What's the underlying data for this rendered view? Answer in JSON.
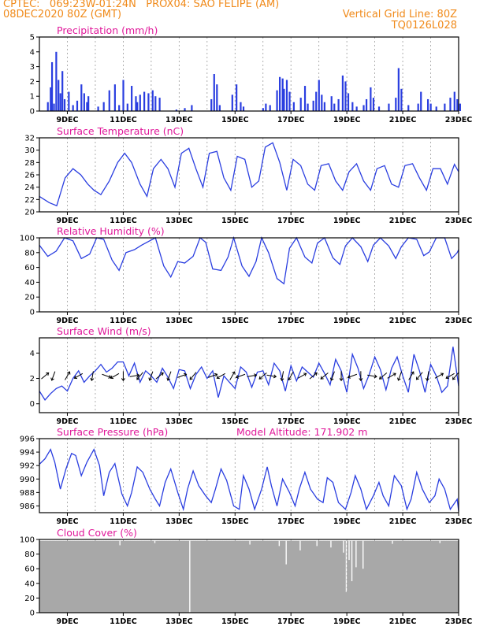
{
  "header": {
    "line1_left": "CPTEC:   069:23W-01:24N   PROX04: SAO FELIPE (AM)",
    "line2_left": "08DEC2020 80Z (GMT)",
    "line2_right": "Vertical Grid Line: 80Z",
    "line3_right": "TQ0126L028"
  },
  "colors": {
    "header": "#f08a1a",
    "title": "#e0189a",
    "line": "#2a3ee0",
    "bar": "#2a3ee0",
    "cloud": "#a8a8a8",
    "axis": "#000000"
  },
  "x_axis": {
    "tick_labels": [
      "9DEC",
      "11DEC",
      "13DEC",
      "15DEC",
      "17DEC",
      "19DEC",
      "21DEC",
      "23DEC"
    ],
    "start": "08DEC2020 80Z",
    "end": "23DEC2020 80Z"
  },
  "chart_data": [
    {
      "type": "bar",
      "title": "Precipitation (mm/h)",
      "ylabel": "mm/h",
      "ylim": [
        0,
        5
      ],
      "yticks": [
        0,
        1,
        2,
        3,
        4,
        5
      ],
      "bars": [
        [
          8.3,
          0.6
        ],
        [
          8.4,
          1.6
        ],
        [
          8.45,
          3.3
        ],
        [
          8.52,
          0.5
        ],
        [
          8.6,
          4.0
        ],
        [
          8.68,
          2.1
        ],
        [
          8.75,
          1.2
        ],
        [
          8.82,
          2.7
        ],
        [
          8.9,
          0.8
        ],
        [
          9.05,
          1.3
        ],
        [
          9.2,
          0.4
        ],
        [
          9.35,
          0.7
        ],
        [
          9.5,
          1.8
        ],
        [
          9.6,
          1.2
        ],
        [
          9.7,
          0.6
        ],
        [
          9.75,
          1.0
        ],
        [
          10.1,
          0.3
        ],
        [
          10.3,
          0.6
        ],
        [
          10.5,
          1.4
        ],
        [
          10.7,
          1.8
        ],
        [
          10.85,
          0.4
        ],
        [
          11.0,
          2.1
        ],
        [
          11.15,
          0.5
        ],
        [
          11.3,
          1.7
        ],
        [
          11.45,
          1.0
        ],
        [
          11.5,
          0.6
        ],
        [
          11.6,
          1.1
        ],
        [
          11.75,
          1.3
        ],
        [
          11.9,
          1.2
        ],
        [
          12.05,
          1.4
        ],
        [
          12.15,
          1.0
        ],
        [
          12.3,
          0.9
        ],
        [
          12.9,
          0.1
        ],
        [
          13.2,
          0.2
        ],
        [
          13.45,
          0.4
        ],
        [
          14.15,
          0.8
        ],
        [
          14.25,
          2.5
        ],
        [
          14.35,
          1.8
        ],
        [
          14.45,
          0.4
        ],
        [
          14.9,
          1.1
        ],
        [
          15.05,
          1.8
        ],
        [
          15.2,
          0.6
        ],
        [
          15.3,
          0.3
        ],
        [
          16.0,
          0.2
        ],
        [
          16.1,
          0.5
        ],
        [
          16.25,
          0.4
        ],
        [
          16.5,
          1.4
        ],
        [
          16.6,
          2.3
        ],
        [
          16.7,
          2.2
        ],
        [
          16.75,
          1.5
        ],
        [
          16.85,
          2.1
        ],
        [
          16.95,
          1.3
        ],
        [
          17.1,
          0.6
        ],
        [
          17.35,
          0.9
        ],
        [
          17.5,
          1.7
        ],
        [
          17.6,
          0.5
        ],
        [
          17.8,
          0.7
        ],
        [
          17.9,
          1.3
        ],
        [
          18.0,
          2.1
        ],
        [
          18.1,
          1.1
        ],
        [
          18.2,
          0.6
        ],
        [
          18.45,
          1.0
        ],
        [
          18.55,
          0.5
        ],
        [
          18.7,
          0.8
        ],
        [
          18.85,
          2.4
        ],
        [
          18.95,
          2.0
        ],
        [
          19.05,
          1.2
        ],
        [
          19.2,
          0.6
        ],
        [
          19.35,
          0.3
        ],
        [
          19.6,
          0.4
        ],
        [
          19.7,
          0.8
        ],
        [
          19.85,
          1.6
        ],
        [
          19.95,
          0.9
        ],
        [
          20.15,
          0.3
        ],
        [
          20.5,
          0.5
        ],
        [
          20.75,
          0.9
        ],
        [
          20.85,
          2.9
        ],
        [
          20.95,
          1.5
        ],
        [
          21.2,
          0.4
        ],
        [
          21.55,
          0.5
        ],
        [
          21.65,
          1.3
        ],
        [
          21.9,
          0.8
        ],
        [
          22.0,
          0.5
        ],
        [
          22.2,
          0.3
        ],
        [
          22.5,
          0.5
        ],
        [
          22.7,
          0.9
        ],
        [
          22.85,
          1.3
        ],
        [
          22.95,
          0.8
        ],
        [
          23.05,
          0.5
        ]
      ]
    },
    {
      "type": "line",
      "title": "Surface Temperature (nC)",
      "ylabel": "nC",
      "ylim": [
        20,
        32
      ],
      "yticks": [
        20,
        22,
        24,
        26,
        28,
        30,
        32
      ],
      "x": [
        8.0,
        8.35,
        8.62,
        8.92,
        9.2,
        9.48,
        9.73,
        9.95,
        10.2,
        10.5,
        10.8,
        11.05,
        11.3,
        11.6,
        11.85,
        12.08,
        12.35,
        12.6,
        12.85,
        13.08,
        13.35,
        13.6,
        13.85,
        14.08,
        14.35,
        14.6,
        14.85,
        15.08,
        15.35,
        15.6,
        15.85,
        16.08,
        16.35,
        16.6,
        16.85,
        17.08,
        17.35,
        17.6,
        17.85,
        18.08,
        18.35,
        18.6,
        18.85,
        19.08,
        19.35,
        19.6,
        19.85,
        20.08,
        20.35,
        20.6,
        20.85,
        21.08,
        21.35,
        21.6,
        21.85,
        22.08,
        22.35,
        22.6,
        22.85,
        23.0
      ],
      "y": [
        22.5,
        21.5,
        21.0,
        25.5,
        27.0,
        26.0,
        24.5,
        23.5,
        22.8,
        25.0,
        28.0,
        29.5,
        28.0,
        24.5,
        22.5,
        27.0,
        28.5,
        27.0,
        24.0,
        29.5,
        30.3,
        27.0,
        24.0,
        29.5,
        29.8,
        25.5,
        23.5,
        29.0,
        28.5,
        24.0,
        25.0,
        30.5,
        31.2,
        28.0,
        23.5,
        28.5,
        27.5,
        24.5,
        23.5,
        27.5,
        27.8,
        25.0,
        23.5,
        26.5,
        27.8,
        25.0,
        23.5,
        27.0,
        27.5,
        24.5,
        24.0,
        27.5,
        27.8,
        25.5,
        23.5,
        27.0,
        27.0,
        24.5,
        27.7,
        26.5
      ]
    },
    {
      "type": "line",
      "title": "Relative Humidity (%)",
      "ylabel": "%",
      "ylim": [
        0,
        100
      ],
      "yticks": [
        0,
        20,
        40,
        60,
        80,
        100
      ],
      "x": [
        8.0,
        8.3,
        8.6,
        8.9,
        9.2,
        9.5,
        9.8,
        10.05,
        10.3,
        10.6,
        10.85,
        11.1,
        11.4,
        11.65,
        11.9,
        12.15,
        12.45,
        12.7,
        12.95,
        13.2,
        13.5,
        13.75,
        13.95,
        14.2,
        14.5,
        14.75,
        14.95,
        15.25,
        15.5,
        15.75,
        15.95,
        16.2,
        16.5,
        16.75,
        16.95,
        17.2,
        17.5,
        17.75,
        17.95,
        18.2,
        18.5,
        18.75,
        18.95,
        19.2,
        19.5,
        19.75,
        19.95,
        20.2,
        20.5,
        20.75,
        20.95,
        21.2,
        21.5,
        21.75,
        21.95,
        22.2,
        22.5,
        22.75,
        22.95,
        23.0
      ],
      "y": [
        90,
        75,
        82,
        100,
        96,
        72,
        78,
        100,
        98,
        70,
        56,
        80,
        84,
        90,
        95,
        100,
        62,
        47,
        68,
        66,
        75,
        100,
        94,
        58,
        56,
        74,
        100,
        62,
        48,
        68,
        100,
        80,
        45,
        38,
        86,
        100,
        74,
        66,
        93,
        100,
        73,
        64,
        89,
        100,
        88,
        68,
        90,
        100,
        89,
        72,
        88,
        100,
        98,
        76,
        81,
        100,
        100,
        72,
        80,
        84
      ]
    },
    {
      "type": "line",
      "title": "Surface Wind (m/s)",
      "ylabel": "m/s",
      "ylim": [
        -0.7,
        5.2
      ],
      "yticks": [
        0,
        2,
        4
      ],
      "x": [
        8.0,
        8.2,
        8.4,
        8.6,
        8.8,
        9.0,
        9.2,
        9.4,
        9.6,
        9.8,
        10.0,
        10.2,
        10.4,
        10.6,
        10.8,
        11.0,
        11.2,
        11.4,
        11.6,
        11.8,
        12.0,
        12.2,
        12.4,
        12.6,
        12.8,
        13.0,
        13.2,
        13.4,
        13.6,
        13.8,
        14.0,
        14.2,
        14.4,
        14.6,
        14.8,
        15.0,
        15.2,
        15.4,
        15.6,
        15.8,
        16.0,
        16.2,
        16.4,
        16.6,
        16.8,
        17.0,
        17.2,
        17.4,
        17.6,
        17.8,
        18.0,
        18.2,
        18.4,
        18.6,
        18.8,
        19.0,
        19.2,
        19.4,
        19.6,
        19.8,
        20.0,
        20.2,
        20.4,
        20.6,
        20.8,
        21.0,
        21.2,
        21.4,
        21.6,
        21.8,
        22.0,
        22.2,
        22.4,
        22.6,
        22.8,
        23.0
      ],
      "y": [
        1.0,
        0.3,
        0.8,
        1.2,
        1.4,
        1.0,
        2.0,
        2.6,
        1.7,
        2.2,
        2.6,
        3.1,
        2.5,
        2.8,
        3.3,
        3.3,
        2.2,
        3.2,
        1.7,
        2.6,
        2.2,
        1.7,
        2.8,
        2.1,
        1.2,
        2.7,
        2.6,
        1.2,
        2.3,
        2.9,
        2.0,
        2.6,
        0.5,
        2.2,
        1.7,
        1.2,
        2.9,
        2.5,
        1.3,
        2.5,
        2.6,
        1.5,
        3.2,
        2.6,
        1.0,
        3.0,
        1.8,
        2.9,
        2.5,
        2.1,
        3.2,
        2.4,
        1.5,
        3.5,
        2.6,
        0.9,
        3.9,
        2.8,
        1.2,
        2.3,
        3.7,
        2.7,
        1.1,
        2.8,
        3.7,
        2.2,
        0.9,
        3.9,
        2.6,
        0.9,
        3.1,
        2.2,
        0.9,
        1.4,
        4.5,
        1.4
      ],
      "arrows": [
        [
          8.2,
          50
        ],
        [
          8.5,
          200
        ],
        [
          9.0,
          30
        ],
        [
          9.4,
          240
        ],
        [
          9.9,
          190
        ],
        [
          10.4,
          110
        ],
        [
          10.7,
          240
        ],
        [
          11.0,
          180
        ],
        [
          11.4,
          80
        ],
        [
          11.6,
          220
        ],
        [
          12.0,
          200
        ],
        [
          12.3,
          50
        ],
        [
          12.65,
          200
        ],
        [
          13.1,
          70
        ],
        [
          13.5,
          220
        ],
        [
          14.2,
          70
        ],
        [
          14.5,
          240
        ],
        [
          14.9,
          30
        ],
        [
          15.2,
          250
        ],
        [
          15.6,
          80
        ],
        [
          16.0,
          230
        ],
        [
          16.3,
          100
        ],
        [
          16.7,
          190
        ],
        [
          17.0,
          210
        ],
        [
          17.4,
          60
        ],
        [
          17.8,
          50
        ],
        [
          18.2,
          230
        ],
        [
          18.5,
          200
        ],
        [
          18.8,
          180
        ],
        [
          19.2,
          250
        ],
        [
          19.5,
          180
        ],
        [
          19.9,
          100
        ],
        [
          20.3,
          230
        ],
        [
          20.6,
          60
        ],
        [
          20.9,
          200
        ],
        [
          21.3,
          30
        ],
        [
          21.6,
          220
        ],
        [
          21.9,
          190
        ],
        [
          22.3,
          60
        ],
        [
          22.7,
          240
        ],
        [
          22.9,
          220
        ]
      ]
    },
    {
      "type": "line",
      "title": "Surface Pressure (hPa)",
      "annotation": "Model Altitude: 171.902 m",
      "ylabel": "hPa",
      "ylim": [
        985,
        996
      ],
      "yticks": [
        986,
        988,
        990,
        992,
        994,
        996
      ],
      "x": [
        8.0,
        8.2,
        8.4,
        8.55,
        8.75,
        8.95,
        9.15,
        9.3,
        9.5,
        9.7,
        9.95,
        10.15,
        10.3,
        10.5,
        10.7,
        10.95,
        11.15,
        11.3,
        11.5,
        11.7,
        11.95,
        12.15,
        12.3,
        12.5,
        12.7,
        12.95,
        13.15,
        13.3,
        13.5,
        13.7,
        13.95,
        14.15,
        14.3,
        14.5,
        14.7,
        14.95,
        15.15,
        15.3,
        15.5,
        15.7,
        15.95,
        16.15,
        16.3,
        16.5,
        16.7,
        16.95,
        17.15,
        17.3,
        17.5,
        17.7,
        17.95,
        18.15,
        18.3,
        18.5,
        18.7,
        18.95,
        19.15,
        19.3,
        19.5,
        19.7,
        19.95,
        20.15,
        20.3,
        20.5,
        20.7,
        20.95,
        21.15,
        21.3,
        21.5,
        21.7,
        21.95,
        22.15,
        22.3,
        22.5,
        22.7,
        22.95,
        23.0
      ],
      "y": [
        992.2,
        993.0,
        994.4,
        992.5,
        988.5,
        991.5,
        993.8,
        993.5,
        990.5,
        992.5,
        994.4,
        992.0,
        987.5,
        991.0,
        992.3,
        987.8,
        986.0,
        988.0,
        991.8,
        991.0,
        988.5,
        987.0,
        986.0,
        989.5,
        991.5,
        988.0,
        985.5,
        988.5,
        991.2,
        989.0,
        987.5,
        986.5,
        988.5,
        991.5,
        989.8,
        986.0,
        985.5,
        990.5,
        988.5,
        985.5,
        988.5,
        991.8,
        989.0,
        986.0,
        990.0,
        988.0,
        986.0,
        988.5,
        991.0,
        988.5,
        987.0,
        986.5,
        990.2,
        989.5,
        986.5,
        985.5,
        988.0,
        990.5,
        988.5,
        985.5,
        987.5,
        989.5,
        987.5,
        986.0,
        990.5,
        989.0,
        985.5,
        987.0,
        991.0,
        988.5,
        986.5,
        987.5,
        990.0,
        988.5,
        985.5,
        987.0,
        985.2
      ]
    },
    {
      "type": "area",
      "title": "Cloud Cover (%)",
      "ylabel": "%",
      "ylim": [
        0,
        100
      ],
      "yticks": [
        0,
        20,
        40,
        60,
        80,
        100
      ],
      "base": 98,
      "dips": [
        [
          10.85,
          92
        ],
        [
          12.1,
          95
        ],
        [
          13.35,
          0
        ],
        [
          15.5,
          93
        ],
        [
          16.55,
          91
        ],
        [
          16.8,
          66
        ],
        [
          17.3,
          85
        ],
        [
          17.9,
          91
        ],
        [
          18.4,
          89
        ],
        [
          18.85,
          82
        ],
        [
          18.95,
          28
        ],
        [
          19.05,
          72
        ],
        [
          19.15,
          43
        ],
        [
          19.3,
          62
        ],
        [
          19.55,
          60
        ],
        [
          20.6,
          94
        ],
        [
          22.3,
          95
        ]
      ]
    }
  ]
}
